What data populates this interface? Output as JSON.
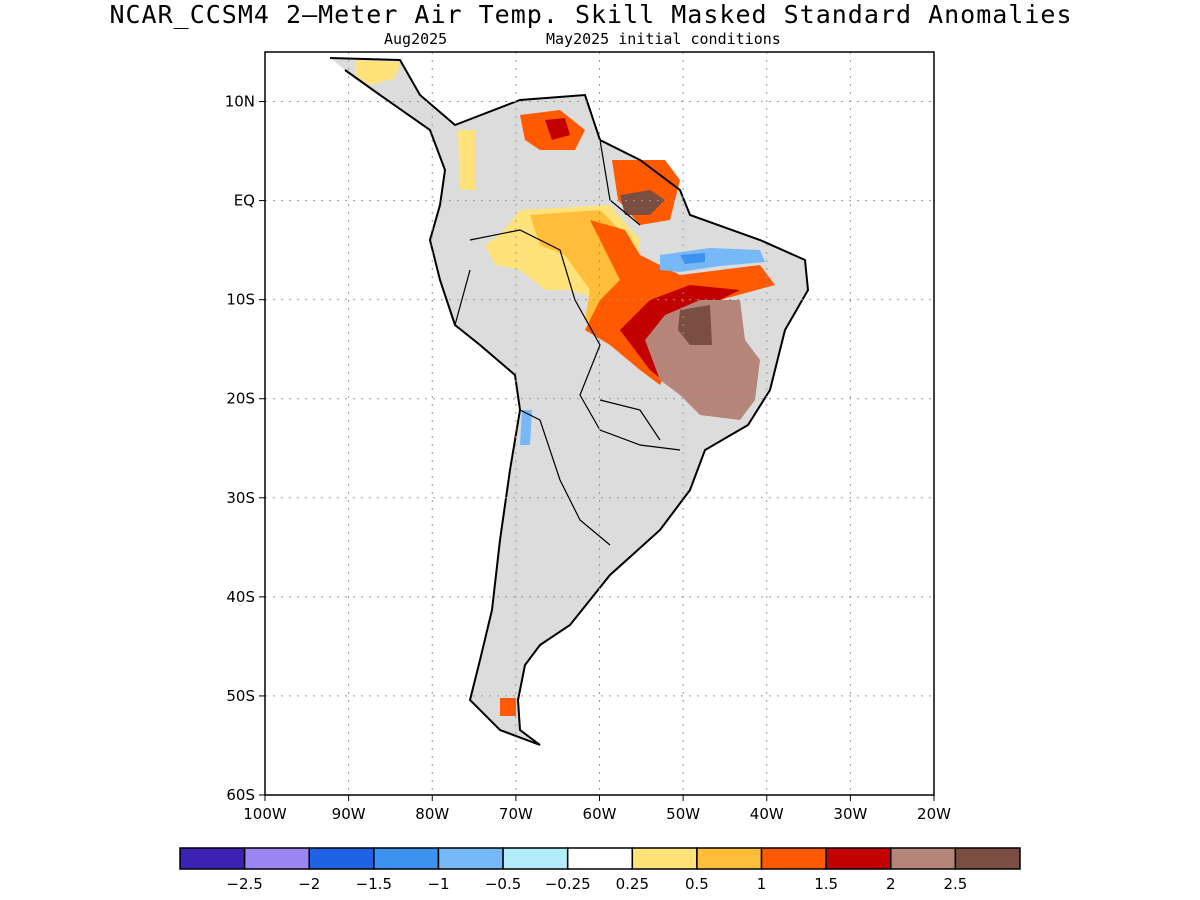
{
  "header": {
    "title": "NCAR_CCSM4 2—Meter Air Temp. Skill Masked Standard Anomalies",
    "valid_month": "Aug2025",
    "initial_conditions": "May2025 initial conditions"
  },
  "map": {
    "region": "South America",
    "lon_range": [
      -100,
      -20
    ],
    "lat_range": [
      -60,
      15
    ],
    "lon_ticks": [
      {
        "value": -100,
        "label": "100W"
      },
      {
        "value": -90,
        "label": "90W"
      },
      {
        "value": -80,
        "label": "80W"
      },
      {
        "value": -70,
        "label": "70W"
      },
      {
        "value": -60,
        "label": "60W"
      },
      {
        "value": -50,
        "label": "50W"
      },
      {
        "value": -40,
        "label": "40W"
      },
      {
        "value": -30,
        "label": "30W"
      },
      {
        "value": -20,
        "label": "20W"
      }
    ],
    "lat_ticks": [
      {
        "value": 10,
        "label": "10N"
      },
      {
        "value": 0,
        "label": "EQ"
      },
      {
        "value": -10,
        "label": "10S"
      },
      {
        "value": -20,
        "label": "20S"
      },
      {
        "value": -30,
        "label": "30S"
      },
      {
        "value": -40,
        "label": "40S"
      },
      {
        "value": -50,
        "label": "50S"
      },
      {
        "value": -60,
        "label": "60S"
      }
    ],
    "grid": "dotted",
    "masked_color": "#dcdcdc"
  },
  "colorbar": {
    "colors": [
      "#3b22b3",
      "#9b85f2",
      "#1e63e6",
      "#3d91f0",
      "#77b8f7",
      "#b2ecf7",
      "#ffffff",
      "#ffe27a",
      "#ffbd3a",
      "#ff5a00",
      "#c20000",
      "#b5857a",
      "#7a4f42"
    ],
    "labels": [
      "−2.5",
      "−2",
      "−1.5",
      "−1",
      "−0.5",
      "−0.25",
      "0.25",
      "0.5",
      "1",
      "1.5",
      "2",
      "2.5"
    ]
  }
}
